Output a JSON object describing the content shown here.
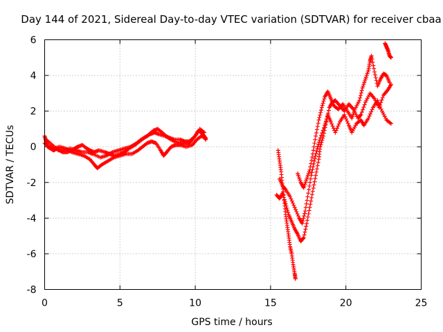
{
  "chart_data": {
    "type": "scatter",
    "title": "Day 144 of 2021, Sidereal Day-to-day VTEC variation (SDTVAR) for receiver cbaa",
    "xlabel": "GPS time / hours",
    "ylabel": "SDTVAR / TECUs",
    "xlim": [
      0,
      25
    ],
    "ylim": [
      -8,
      6
    ],
    "xticks": [
      0,
      5,
      10,
      15,
      20,
      25
    ],
    "yticks": [
      -8,
      -6,
      -4,
      -2,
      0,
      2,
      4,
      6
    ],
    "xtick_labels": [
      "0",
      "5",
      "10",
      "15",
      "20",
      "25"
    ],
    "ytick_labels": [
      "-8",
      "-6",
      "-4",
      "-2",
      "0",
      "2",
      "4",
      "6"
    ],
    "grid": true,
    "marker": "+",
    "marker_color": "#ff0000",
    "series": [
      {
        "points": [
          [
            0.0,
            0.6
          ],
          [
            0.1,
            0.3
          ],
          [
            0.2,
            0.0
          ],
          [
            0.4,
            -0.1
          ],
          [
            0.6,
            -0.2
          ],
          [
            0.8,
            -0.1
          ],
          [
            1.0,
            -0.2
          ],
          [
            1.2,
            -0.3
          ],
          [
            1.5,
            -0.3
          ],
          [
            1.8,
            -0.2
          ],
          [
            2.0,
            -0.1
          ],
          [
            2.2,
            0.0
          ],
          [
            2.5,
            0.1
          ],
          [
            2.8,
            -0.1
          ],
          [
            3.0,
            -0.2
          ],
          [
            3.3,
            -0.3
          ],
          [
            3.6,
            -0.2
          ],
          [
            4.0,
            -0.3
          ],
          [
            4.3,
            -0.4
          ],
          [
            4.6,
            -0.5
          ],
          [
            5.0,
            -0.4
          ],
          [
            5.3,
            -0.3
          ],
          [
            5.6,
            -0.1
          ],
          [
            6.0,
            0.1
          ],
          [
            6.3,
            0.3
          ],
          [
            6.6,
            0.5
          ],
          [
            7.0,
            0.7
          ],
          [
            7.3,
            0.8
          ],
          [
            7.6,
            0.7
          ],
          [
            8.0,
            0.6
          ],
          [
            8.3,
            0.5
          ],
          [
            8.6,
            0.4
          ],
          [
            9.0,
            0.4
          ],
          [
            9.3,
            0.3
          ],
          [
            9.6,
            0.3
          ],
          [
            10.0,
            0.6
          ],
          [
            10.2,
            0.9
          ],
          [
            10.4,
            0.8
          ],
          [
            10.6,
            0.6
          ],
          [
            10.7,
            0.4
          ]
        ]
      },
      {
        "points": [
          [
            0.0,
            0.2
          ],
          [
            0.3,
            0.0
          ],
          [
            0.6,
            -0.1
          ],
          [
            1.0,
            0.0
          ],
          [
            1.4,
            -0.1
          ],
          [
            1.8,
            -0.3
          ],
          [
            2.2,
            -0.4
          ],
          [
            2.6,
            -0.5
          ],
          [
            3.0,
            -0.7
          ],
          [
            3.3,
            -1.0
          ],
          [
            3.5,
            -1.2
          ],
          [
            3.8,
            -1.0
          ],
          [
            4.2,
            -0.8
          ],
          [
            4.6,
            -0.6
          ],
          [
            5.0,
            -0.5
          ],
          [
            5.4,
            -0.4
          ],
          [
            5.8,
            -0.4
          ],
          [
            6.2,
            -0.2
          ],
          [
            6.5,
            0.0
          ],
          [
            6.8,
            0.2
          ],
          [
            7.1,
            0.3
          ],
          [
            7.4,
            0.2
          ],
          [
            7.7,
            -0.2
          ],
          [
            7.9,
            -0.5
          ],
          [
            8.1,
            -0.3
          ],
          [
            8.4,
            0.0
          ],
          [
            8.7,
            0.1
          ],
          [
            9.0,
            0.1
          ],
          [
            9.4,
            0.0
          ],
          [
            9.8,
            0.1
          ],
          [
            10.1,
            0.4
          ],
          [
            10.4,
            0.6
          ],
          [
            10.7,
            0.5
          ]
        ]
      },
      {
        "points": [
          [
            0.1,
            0.4
          ],
          [
            0.5,
            0.1
          ],
          [
            0.9,
            -0.2
          ],
          [
            1.3,
            -0.2
          ],
          [
            1.7,
            -0.1
          ],
          [
            2.1,
            -0.2
          ],
          [
            2.5,
            -0.3
          ],
          [
            2.9,
            -0.3
          ],
          [
            3.2,
            -0.4
          ],
          [
            3.7,
            -0.6
          ],
          [
            4.1,
            -0.5
          ],
          [
            4.5,
            -0.3
          ],
          [
            4.9,
            -0.2
          ],
          [
            5.3,
            -0.1
          ],
          [
            5.7,
            0.0
          ],
          [
            6.1,
            0.2
          ],
          [
            6.4,
            0.4
          ],
          [
            6.8,
            0.6
          ],
          [
            7.2,
            0.9
          ],
          [
            7.5,
            1.0
          ],
          [
            7.8,
            0.8
          ],
          [
            8.2,
            0.5
          ],
          [
            8.6,
            0.3
          ],
          [
            9.0,
            0.2
          ],
          [
            9.3,
            0.2
          ],
          [
            9.6,
            0.2
          ],
          [
            9.9,
            0.5
          ],
          [
            10.3,
            1.0
          ],
          [
            10.6,
            0.8
          ]
        ]
      },
      {
        "points": [
          [
            15.5,
            -0.2
          ],
          [
            15.6,
            -0.8
          ],
          [
            15.7,
            -1.4
          ],
          [
            15.8,
            -2.2
          ],
          [
            15.9,
            -3.0
          ],
          [
            16.0,
            -3.8
          ],
          [
            16.1,
            -4.4
          ],
          [
            16.2,
            -5.0
          ],
          [
            16.3,
            -5.6
          ],
          [
            16.4,
            -6.0
          ],
          [
            16.5,
            -6.6
          ],
          [
            16.6,
            -7.1
          ],
          [
            16.65,
            -7.4
          ]
        ]
      },
      {
        "points": [
          [
            15.4,
            -2.7
          ],
          [
            15.6,
            -2.9
          ],
          [
            15.8,
            -2.6
          ],
          [
            16.0,
            -3.2
          ],
          [
            16.2,
            -3.8
          ],
          [
            16.4,
            -4.2
          ],
          [
            16.6,
            -4.6
          ],
          [
            16.8,
            -4.9
          ],
          [
            17.0,
            -5.3
          ],
          [
            17.2,
            -5.1
          ],
          [
            17.4,
            -4.3
          ],
          [
            17.6,
            -3.4
          ],
          [
            17.8,
            -2.5
          ],
          [
            18.0,
            -1.6
          ],
          [
            18.2,
            -0.7
          ],
          [
            18.3,
            0.0
          ],
          [
            18.5,
            0.6
          ],
          [
            18.7,
            1.4
          ],
          [
            18.9,
            2.2
          ],
          [
            19.1,
            2.5
          ],
          [
            19.3,
            2.6
          ],
          [
            19.6,
            2.3
          ],
          [
            19.9,
            2.0
          ],
          [
            20.2,
            2.4
          ],
          [
            20.5,
            2.1
          ],
          [
            20.8,
            1.6
          ],
          [
            21.0,
            1.8
          ],
          [
            21.3,
            2.5
          ],
          [
            21.6,
            3.0
          ],
          [
            21.9,
            2.7
          ],
          [
            22.2,
            2.2
          ],
          [
            22.5,
            2.9
          ],
          [
            22.8,
            3.2
          ],
          [
            23.0,
            3.5
          ]
        ]
      },
      {
        "points": [
          [
            15.6,
            -1.8
          ],
          [
            15.8,
            -2.2
          ],
          [
            16.0,
            -2.4
          ],
          [
            16.3,
            -2.8
          ],
          [
            16.6,
            -3.4
          ],
          [
            16.9,
            -4.0
          ],
          [
            17.1,
            -4.3
          ],
          [
            17.3,
            -3.6
          ],
          [
            17.5,
            -2.6
          ],
          [
            17.7,
            -1.6
          ],
          [
            17.9,
            -0.8
          ],
          [
            18.1,
            -0.1
          ],
          [
            18.3,
            0.5
          ],
          [
            18.6,
            1.2
          ],
          [
            18.8,
            1.8
          ],
          [
            19.0,
            1.4
          ],
          [
            19.3,
            0.8
          ],
          [
            19.6,
            1.4
          ],
          [
            19.9,
            1.8
          ],
          [
            20.2,
            1.2
          ],
          [
            20.4,
            0.8
          ],
          [
            20.7,
            1.3
          ],
          [
            21.0,
            1.5
          ],
          [
            21.2,
            1.2
          ],
          [
            21.5,
            1.6
          ],
          [
            21.8,
            2.2
          ],
          [
            22.1,
            2.6
          ],
          [
            22.4,
            2.0
          ],
          [
            22.7,
            1.5
          ],
          [
            23.0,
            1.3
          ]
        ]
      },
      {
        "points": [
          [
            16.8,
            -1.5
          ],
          [
            17.0,
            -2.0
          ],
          [
            17.2,
            -2.3
          ],
          [
            17.4,
            -1.8
          ],
          [
            17.6,
            -1.3
          ],
          [
            17.8,
            -0.4
          ],
          [
            18.0,
            0.6
          ],
          [
            18.2,
            1.5
          ],
          [
            18.4,
            2.2
          ],
          [
            18.6,
            2.8
          ],
          [
            18.8,
            3.1
          ],
          [
            19.0,
            2.7
          ],
          [
            19.2,
            2.3
          ],
          [
            19.5,
            2.1
          ],
          [
            19.8,
            2.4
          ],
          [
            20.1,
            2.0
          ],
          [
            20.4,
            1.6
          ],
          [
            20.6,
            2.1
          ],
          [
            20.9,
            2.6
          ],
          [
            21.1,
            3.3
          ],
          [
            21.3,
            3.8
          ],
          [
            21.5,
            4.3
          ],
          [
            21.6,
            4.8
          ],
          [
            21.7,
            5.1
          ],
          [
            21.9,
            4.2
          ],
          [
            22.1,
            3.4
          ],
          [
            22.3,
            3.8
          ],
          [
            22.5,
            4.1
          ],
          [
            22.7,
            4.0
          ],
          [
            22.9,
            3.6
          ]
        ]
      },
      {
        "points": [
          [
            22.6,
            5.8
          ],
          [
            22.7,
            5.6
          ],
          [
            22.8,
            5.4
          ],
          [
            22.9,
            5.1
          ],
          [
            23.0,
            5.0
          ]
        ]
      }
    ]
  }
}
